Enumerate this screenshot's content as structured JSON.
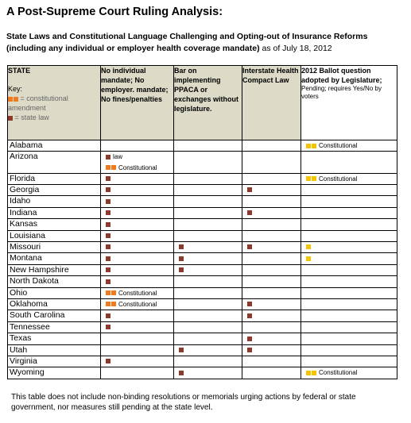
{
  "title": "A Post-Supreme Court Ruling Analysis:",
  "subtitle": {
    "bold_part": "State Laws and Constitutional Language Challenging and Opting-out of Insurance Reforms (including any individual or employer health coverage mandate)",
    "rest": " as of July 18, 2012"
  },
  "headers": {
    "state": "STATE",
    "key_label": "Key:",
    "key_constitutional": " = constitutional amendment",
    "key_state_law": " = state law",
    "col1": "No individual mandate; No employer. mandate; No fines/penalties",
    "col2": "Bar on implementing PPACA or exchanges without legislature.",
    "col3": "Interstate Health Compact Law",
    "col4": "2012 Ballot question adopted by Legislature;",
    "col4_note": "Pending; requires Yes/No by voters"
  },
  "labels": {
    "law": "law",
    "constitutional": "Constitutional"
  },
  "rows": [
    {
      "state": "Alabama"
    },
    {
      "state": "Arizona"
    },
    {
      "state": "Florida"
    },
    {
      "state": "Georgia"
    },
    {
      "state": "Idaho"
    },
    {
      "state": "Indiana"
    },
    {
      "state": "Kansas"
    },
    {
      "state": "Louisiana"
    },
    {
      "state": "Missouri"
    },
    {
      "state": "Montana"
    },
    {
      "state": "New Hampshire"
    },
    {
      "state": "North Dakota"
    },
    {
      "state": "Ohio"
    },
    {
      "state": "Oklahoma"
    },
    {
      "state": "South Carolina"
    },
    {
      "state": "Tennessee"
    },
    {
      "state": "Texas"
    },
    {
      "state": "Utah"
    },
    {
      "state": "Virginia"
    },
    {
      "state": "Wyoming"
    }
  ],
  "footnote": "This table does not include non-binding resolutions or memorials urging actions by federal or state government, nor measures still pending at the state level.",
  "colors": {
    "state_law": "#8b3a2c",
    "constitutional": "#f07a1e",
    "ballot": "#f5c400",
    "header_bg": "#dddbc8"
  }
}
